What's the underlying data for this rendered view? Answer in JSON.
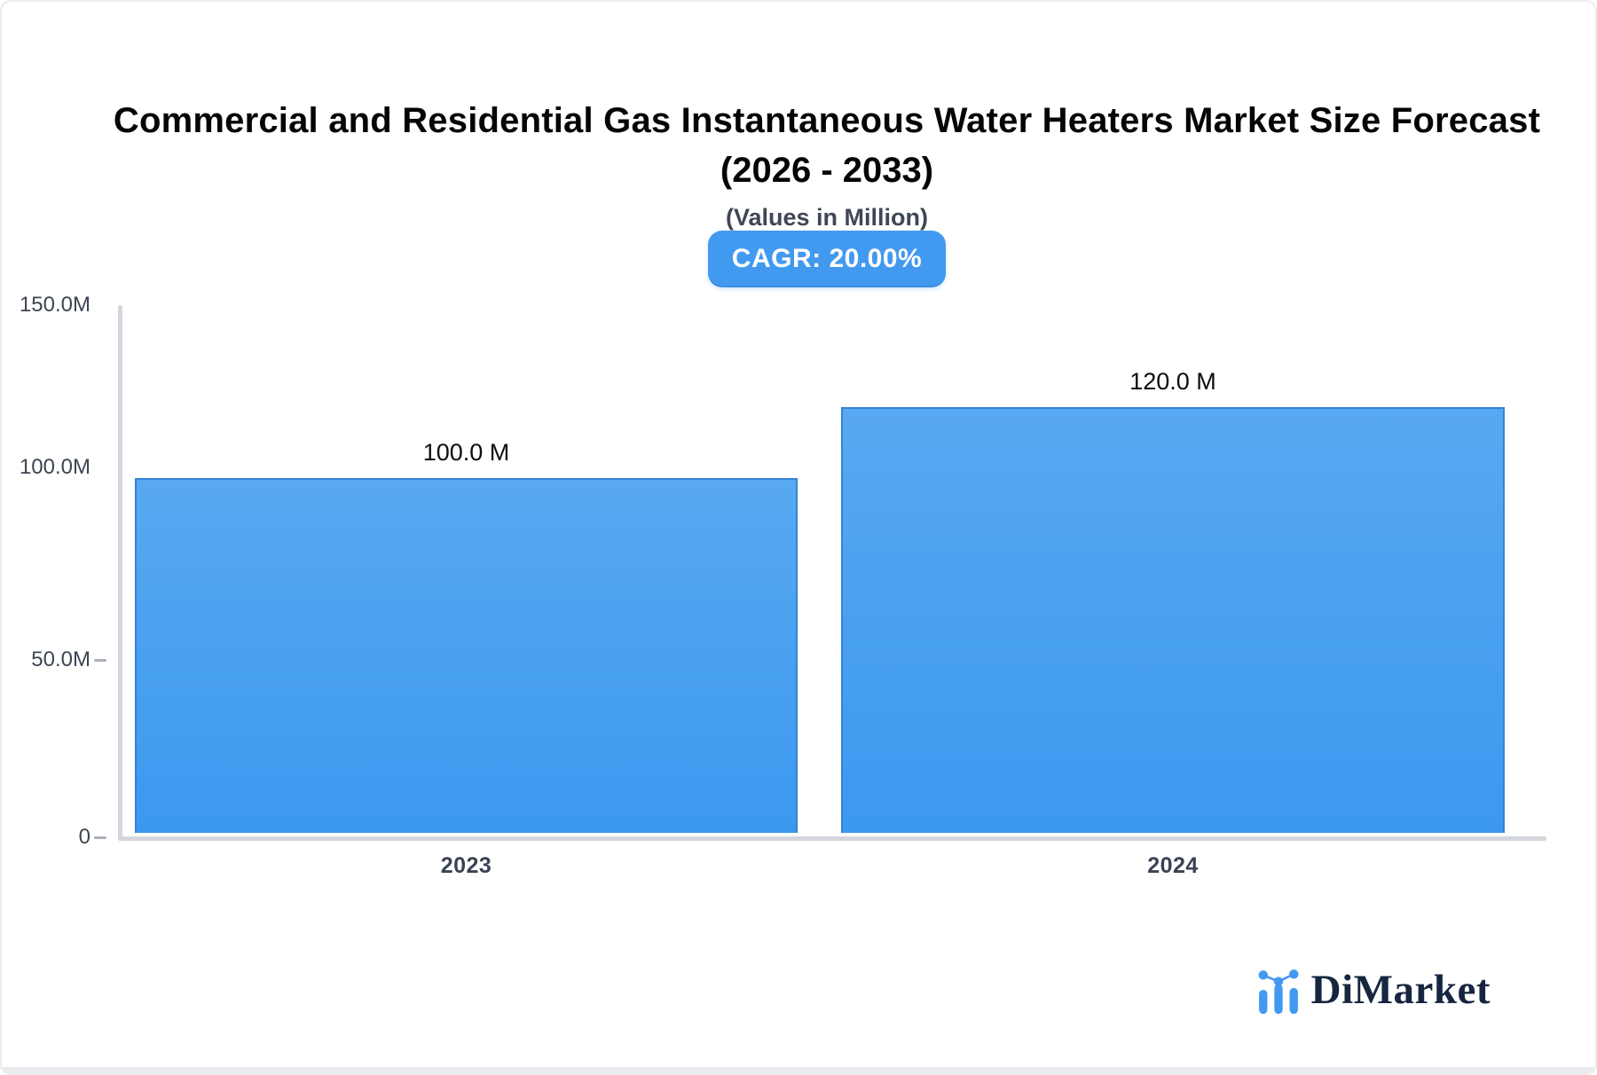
{
  "header": {
    "title_line1": "Commercial and Residential Gas Instantaneous Water Heaters Market Size Forecast",
    "title_line2": "(2026 - 2033)",
    "subtitle": "(Values in Million)",
    "cagr_label": "CAGR: 20.00%"
  },
  "chart_data": {
    "type": "bar",
    "title": "Commercial and Residential Gas Instantaneous Water Heaters Market Size Forecast (2026 - 2033)",
    "subtitle": "(Values in Million)",
    "unit": "Million",
    "categories": [
      "2023",
      "2024"
    ],
    "values": [
      100.0,
      120.0
    ],
    "value_labels": [
      "100.0 M",
      "120.0 M"
    ],
    "ylim": [
      0,
      150
    ],
    "yticks": [
      0,
      50,
      100,
      150
    ],
    "ytick_labels": [
      "0",
      "50.0M",
      "100.0M",
      "150.0M"
    ],
    "grid": false,
    "legend": "none",
    "cagr_percent": 20.0,
    "bar_color_top": "#58a9f1",
    "bar_color_bottom": "#3c98ef",
    "bar_border_color": "#3383d6"
  },
  "branding": {
    "logo_text": "DiMarket",
    "logo_icon": "mini-bar-chart-with-dots-icon",
    "logo_blue": "#4299f0",
    "logo_navy": "#16263f"
  },
  "colors": {
    "badge_bg": "#4299f0",
    "axis_line": "#d3d6dc",
    "axis_text": "#3d4553",
    "title_text": "#050505"
  }
}
